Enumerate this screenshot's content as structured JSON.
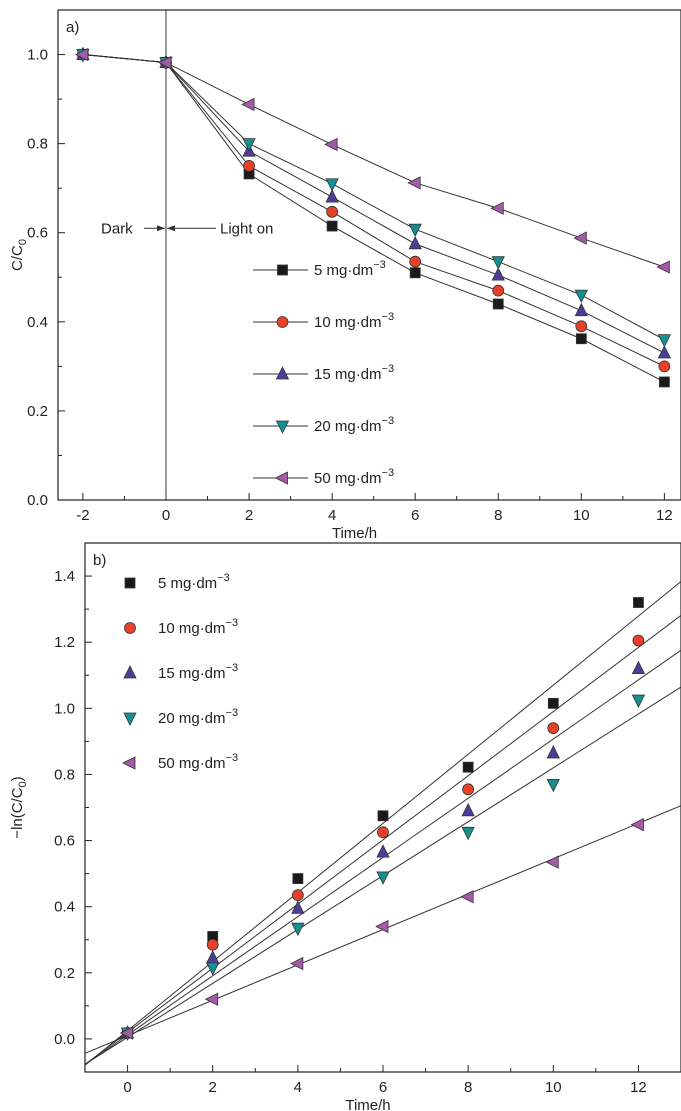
{
  "chart_data": [
    {
      "type": "line",
      "panel_label": "a)",
      "xlabel": "Time/h",
      "ylabel": "C/C",
      "ylabel_sub": "0",
      "xlim": [
        -2.6,
        12.4
      ],
      "ylim": [
        0.0,
        1.1
      ],
      "xticks": [
        -2,
        0,
        2,
        4,
        6,
        8,
        10,
        12
      ],
      "yticks": [
        0.0,
        0.2,
        0.4,
        0.6,
        0.8,
        1.0
      ],
      "tick_labels_x": [
        "-2",
        "0",
        "2",
        "4",
        "6",
        "8",
        "10",
        "12"
      ],
      "tick_labels_y": [
        "0.0",
        "0.2",
        "0.4",
        "0.6",
        "0.8",
        "1.0"
      ],
      "grid": false,
      "legend_position": "center-right",
      "vline_x": 0,
      "annotations": {
        "dark": "Dark",
        "light": "Light on"
      },
      "x": [
        -2,
        0,
        2,
        4,
        6,
        8,
        10,
        12
      ],
      "series": [
        {
          "name": "5 mg·dm",
          "sup": "−3",
          "marker": "square",
          "color": "#1a1a1a",
          "values": [
            1.0,
            0.982,
            0.732,
            0.615,
            0.51,
            0.44,
            0.362,
            0.265
          ]
        },
        {
          "name": "10 mg·dm",
          "sup": "−3",
          "marker": "circle",
          "color": "#e8412a",
          "values": [
            1.0,
            0.982,
            0.75,
            0.647,
            0.535,
            0.47,
            0.39,
            0.3
          ]
        },
        {
          "name": "15 mg·dm",
          "sup": "−3",
          "marker": "triangle-up",
          "color": "#4b3e9a",
          "values": [
            1.0,
            0.982,
            0.783,
            0.68,
            0.575,
            0.505,
            0.425,
            0.33
          ]
        },
        {
          "name": "20 mg·dm",
          "sup": "−3",
          "marker": "triangle-down",
          "color": "#149292",
          "values": [
            1.0,
            0.982,
            0.8,
            0.71,
            0.608,
            0.535,
            0.46,
            0.36
          ]
        },
        {
          "name": "50 mg·dm",
          "sup": "−3",
          "marker": "triangle-left",
          "color": "#a45aa8",
          "values": [
            1.0,
            0.982,
            0.888,
            0.798,
            0.712,
            0.655,
            0.588,
            0.523
          ]
        }
      ]
    },
    {
      "type": "scatter",
      "panel_label": "b)",
      "xlabel": "Time/h",
      "ylabel": "−ln(C/C",
      "ylabel_sub": "0",
      "ylabel_end": ")",
      "xlim": [
        -1,
        13
      ],
      "ylim": [
        -0.1,
        1.5
      ],
      "xticks": [
        0,
        2,
        4,
        6,
        8,
        10,
        12
      ],
      "yticks": [
        0.0,
        0.2,
        0.4,
        0.6,
        0.8,
        1.0,
        1.2,
        1.4
      ],
      "tick_labels_x": [
        "0",
        "2",
        "4",
        "6",
        "8",
        "10",
        "12"
      ],
      "tick_labels_y": [
        "0.0",
        "0.2",
        "0.4",
        "0.6",
        "0.8",
        "1.0",
        "1.2",
        "1.4"
      ],
      "grid": false,
      "legend_position": "top-left",
      "fit_lines": true,
      "x": [
        0,
        2,
        4,
        6,
        8,
        10,
        12
      ],
      "series": [
        {
          "name": "5 mg·dm",
          "sup": "−3",
          "marker": "square",
          "color": "#1a1a1a",
          "values": [
            0.018,
            0.31,
            0.485,
            0.675,
            0.822,
            1.015,
            1.32
          ],
          "fit": {
            "intercept": 0.025,
            "slope": 0.1045
          }
        },
        {
          "name": "10  mg·dm",
          "sup": "−3",
          "marker": "circle",
          "color": "#e8412a",
          "values": [
            0.018,
            0.285,
            0.435,
            0.625,
            0.755,
            0.94,
            1.205
          ],
          "fit": {
            "intercept": 0.02,
            "slope": 0.097
          }
        },
        {
          "name": "15  mg·dm",
          "sup": "−3",
          "marker": "triangle-up",
          "color": "#4b3e9a",
          "values": [
            0.018,
            0.245,
            0.395,
            0.565,
            0.69,
            0.865,
            1.12
          ],
          "fit": {
            "intercept": 0.012,
            "slope": 0.0895
          }
        },
        {
          "name": "20  mg·dm",
          "sup": "−3",
          "marker": "triangle-down",
          "color": "#149292",
          "values": [
            0.018,
            0.215,
            0.335,
            0.49,
            0.625,
            0.77,
            1.025
          ],
          "fit": {
            "intercept": 0.005,
            "slope": 0.0815
          }
        },
        {
          "name": "50  mg·dm",
          "sup": "−3",
          "marker": "triangle-left",
          "color": "#a45aa8",
          "values": [
            0.018,
            0.12,
            0.228,
            0.34,
            0.43,
            0.535,
            0.648
          ],
          "fit": {
            "intercept": 0.01,
            "slope": 0.0535
          }
        }
      ]
    }
  ]
}
